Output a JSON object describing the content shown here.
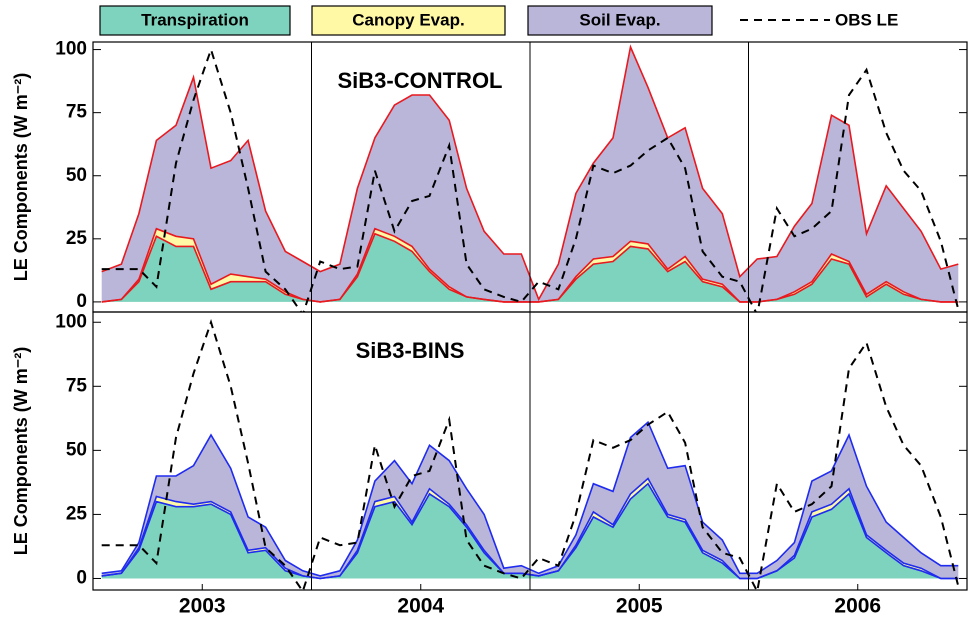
{
  "chart_data": [
    {
      "type": "area",
      "stacked": true,
      "title": "SiB3-CONTROL",
      "y_label": "LE Components (W m⁻²)",
      "legend": "top",
      "x": [
        2003.04,
        2003.13,
        2003.21,
        2003.29,
        2003.38,
        2003.46,
        2003.54,
        2003.63,
        2003.71,
        2003.79,
        2003.88,
        2003.96,
        2004.04,
        2004.13,
        2004.21,
        2004.29,
        2004.38,
        2004.46,
        2004.54,
        2004.63,
        2004.71,
        2004.79,
        2004.88,
        2004.96,
        2005.04,
        2005.13,
        2005.21,
        2005.29,
        2005.38,
        2005.46,
        2005.54,
        2005.63,
        2005.71,
        2005.79,
        2005.88,
        2005.96,
        2006.04,
        2006.13,
        2006.21,
        2006.29,
        2006.38,
        2006.46,
        2006.54,
        2006.63,
        2006.71,
        2006.79,
        2006.88,
        2006.96
      ],
      "series": [
        {
          "name": "Transpiration",
          "color": "#7dd3bd",
          "edge_color": "#e8191f",
          "values": [
            0,
            1,
            8,
            26,
            22,
            22,
            5,
            8,
            8,
            8,
            3,
            1,
            0,
            1,
            10,
            27,
            24,
            20,
            12,
            5,
            2,
            1,
            0,
            0,
            0,
            1,
            9,
            15,
            16,
            22,
            21,
            12,
            16,
            8,
            6,
            0,
            0,
            1,
            3,
            7,
            17,
            15,
            2,
            7,
            3,
            1,
            0,
            0
          ]
        },
        {
          "name": "Canopy Evap.",
          "color": "#fff9a6",
          "edge_color": "#e8191f",
          "values": [
            0,
            0,
            1,
            3,
            4,
            3,
            2,
            3,
            2,
            1,
            1,
            0,
            0,
            0,
            1,
            2,
            2,
            2,
            1,
            1,
            0,
            0,
            0,
            0,
            0,
            0,
            1,
            2,
            2,
            2,
            2,
            1,
            2,
            1,
            1,
            0,
            0,
            0,
            1,
            1,
            2,
            1,
            1,
            1,
            1,
            0,
            0,
            0
          ]
        },
        {
          "name": "Soil Evap.",
          "color": "#bab6d9",
          "edge_color": "#e8191f",
          "values": [
            12,
            14,
            26,
            35,
            44,
            64,
            46,
            45,
            54,
            27,
            16,
            15,
            12,
            14,
            34,
            36,
            52,
            60,
            69,
            66,
            43,
            27,
            19,
            19,
            1,
            14,
            33,
            38,
            47,
            77,
            62,
            52,
            51,
            36,
            28,
            10,
            17,
            17,
            26,
            31,
            55,
            54,
            24,
            38,
            33,
            27,
            13,
            15
          ]
        },
        {
          "name": "OBS LE",
          "type": "line",
          "color": "#000000",
          "dashed": true,
          "values": [
            13,
            13,
            13,
            6,
            55,
            80,
            100,
            75,
            45,
            12,
            5,
            -5,
            16,
            13,
            14,
            52,
            28,
            40,
            42,
            62,
            15,
            5,
            2,
            0,
            8,
            5,
            25,
            54,
            51,
            54,
            60,
            65,
            53,
            20,
            10,
            8,
            -5,
            37,
            26,
            29,
            36,
            82,
            92,
            67,
            52,
            44,
            24,
            -3
          ]
        }
      ],
      "xlim": [
        2003,
        2007
      ],
      "xgrid": [
        2004,
        2005,
        2006
      ],
      "ylim": [
        -4,
        103
      ],
      "yticks": [
        0,
        25,
        50,
        75,
        100
      ]
    },
    {
      "type": "area",
      "stacked": true,
      "title": "SiB3-BINS",
      "y_label": "LE Components (W m⁻²)",
      "x": [
        2003.04,
        2003.13,
        2003.21,
        2003.29,
        2003.38,
        2003.46,
        2003.54,
        2003.63,
        2003.71,
        2003.79,
        2003.88,
        2003.96,
        2004.04,
        2004.13,
        2004.21,
        2004.29,
        2004.38,
        2004.46,
        2004.54,
        2004.63,
        2004.71,
        2004.79,
        2004.88,
        2004.96,
        2005.04,
        2005.13,
        2005.21,
        2005.29,
        2005.38,
        2005.46,
        2005.54,
        2005.63,
        2005.71,
        2005.79,
        2005.88,
        2005.96,
        2006.04,
        2006.13,
        2006.21,
        2006.29,
        2006.38,
        2006.46,
        2006.54,
        2006.63,
        2006.71,
        2006.79,
        2006.88,
        2006.96
      ],
      "series": [
        {
          "name": "Transpiration",
          "color": "#7dd3bd",
          "edge_color": "#1f2bef",
          "values": [
            1,
            2,
            11,
            30,
            28,
            28,
            29,
            25,
            10,
            11,
            3,
            1,
            0,
            1,
            10,
            28,
            30,
            21,
            33,
            28,
            20,
            10,
            2,
            2,
            1,
            3,
            12,
            24,
            20,
            31,
            37,
            24,
            22,
            10,
            6,
            0,
            0,
            3,
            8,
            24,
            27,
            33,
            16,
            10,
            5,
            3,
            0,
            0
          ]
        },
        {
          "name": "Canopy Evap.",
          "color": "#fff9a6",
          "edge_color": "#1f2bef",
          "values": [
            0,
            0,
            1,
            2,
            2,
            1,
            1,
            1,
            1,
            1,
            1,
            0,
            0,
            0,
            1,
            2,
            2,
            1,
            2,
            1,
            1,
            1,
            0,
            0,
            0,
            0,
            1,
            2,
            1,
            2,
            2,
            1,
            1,
            1,
            1,
            0,
            0,
            0,
            1,
            2,
            2,
            2,
            1,
            1,
            1,
            1,
            0,
            0
          ]
        },
        {
          "name": "Soil Evap.",
          "color": "#bab6d9",
          "edge_color": "#1f2bef",
          "values": [
            1,
            1,
            2,
            8,
            10,
            15,
            26,
            17,
            13,
            8,
            3,
            2,
            1,
            2,
            4,
            8,
            14,
            15,
            17,
            17,
            14,
            14,
            2,
            3,
            1,
            2,
            4,
            11,
            13,
            22,
            22,
            18,
            21,
            11,
            8,
            2,
            2,
            4,
            5,
            12,
            13,
            21,
            19,
            11,
            10,
            6,
            5,
            5
          ]
        },
        {
          "name": "OBS LE",
          "type": "line",
          "color": "#000000",
          "dashed": true,
          "values": [
            13,
            13,
            13,
            6,
            55,
            80,
            100,
            75,
            45,
            12,
            5,
            -5,
            16,
            13,
            14,
            52,
            28,
            40,
            42,
            62,
            15,
            5,
            2,
            0,
            8,
            5,
            25,
            54,
            51,
            54,
            60,
            65,
            53,
            20,
            10,
            8,
            -5,
            37,
            26,
            29,
            36,
            82,
            92,
            67,
            52,
            44,
            24,
            -3
          ]
        }
      ],
      "xlim": [
        2003,
        2007
      ],
      "xgrid": [
        2004,
        2005,
        2006
      ],
      "xticks": [
        {
          "value": 2003.5,
          "label": "2003"
        },
        {
          "value": 2004.5,
          "label": "2004"
        },
        {
          "value": 2005.5,
          "label": "2005"
        },
        {
          "value": 2006.5,
          "label": "2006"
        }
      ],
      "ylim": [
        -4.5,
        104
      ],
      "yticks": [
        0,
        25,
        50,
        75,
        100
      ]
    }
  ]
}
